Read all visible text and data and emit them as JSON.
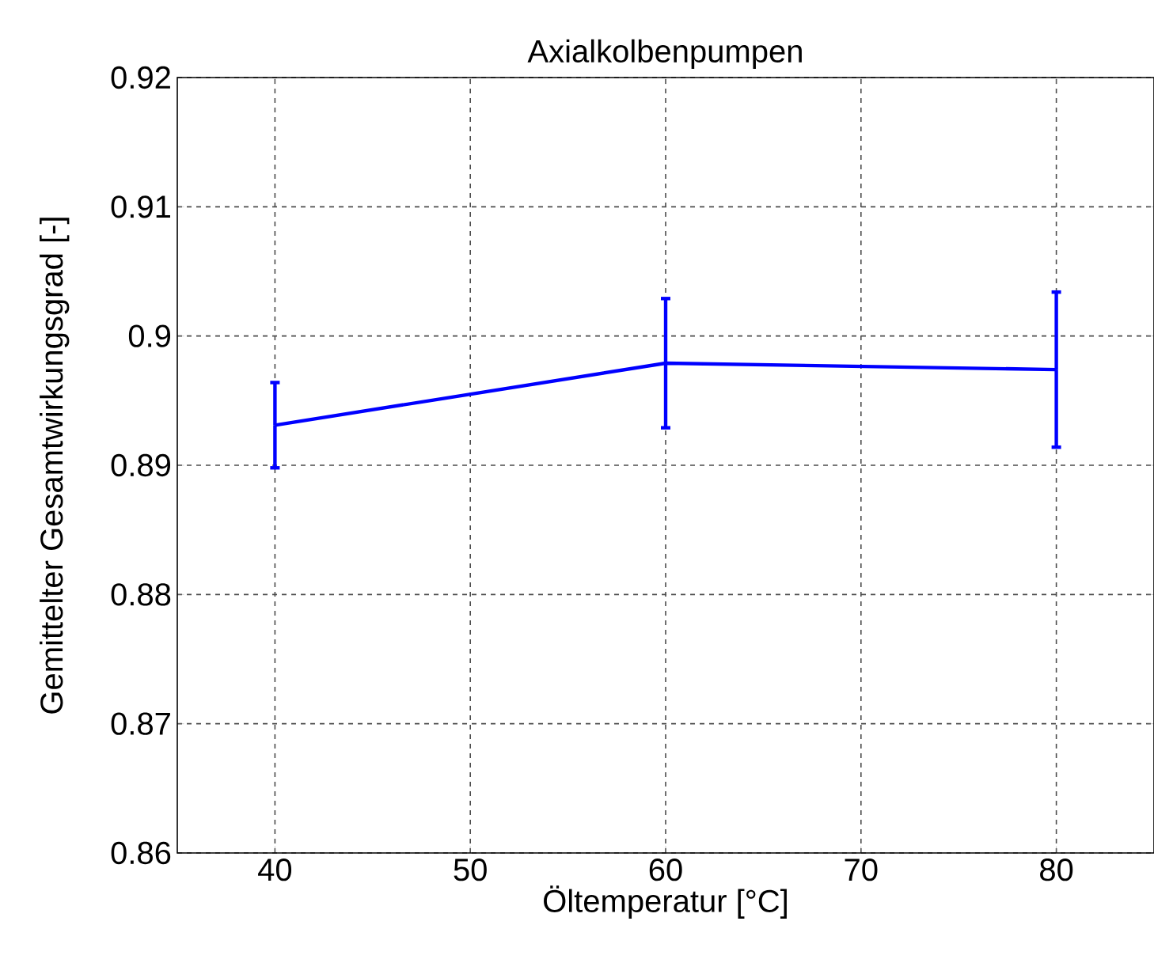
{
  "chart_data": {
    "type": "line",
    "title": "Axialkolbenpumpen",
    "xlabel": "Öltemperatur [°C]",
    "ylabel": "Gemittelter Gesamtwirkungsgrad [-]",
    "x": [
      40,
      60,
      80
    ],
    "series": [
      {
        "color": "#0000ff",
        "values": [
          0.8931,
          0.8979,
          0.8974
        ],
        "errors": [
          0.0033,
          0.005,
          0.006
        ]
      }
    ],
    "xlim": [
      35,
      85
    ],
    "xticks": [
      40,
      50,
      60,
      70,
      80
    ],
    "ylim": [
      0.86,
      0.92
    ],
    "yticks": [
      0.86,
      0.87,
      0.88,
      0.89,
      {
        "value": 0.9,
        "label": "0.9"
      },
      0.91,
      0.92
    ],
    "grid": true,
    "marker": "none",
    "line_style": "solid"
  }
}
